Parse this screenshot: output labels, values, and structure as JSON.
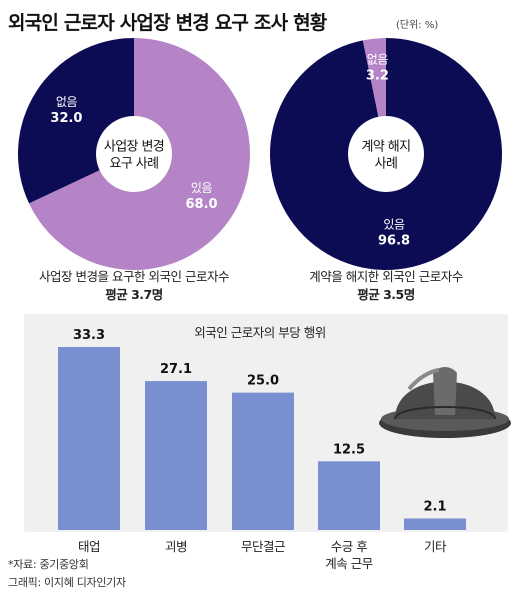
{
  "header": {
    "title": "외국인 근로자 사업장 변경 요구 조사 현황",
    "unit": "(단위: %)"
  },
  "chart_data": [
    {
      "type": "pie",
      "center_label_lines": [
        "사업장 변경",
        "요구 사례"
      ],
      "slices": [
        {
          "label": "있음",
          "value": 68.0,
          "color": "#b584c6"
        },
        {
          "label": "없음",
          "value": 32.0,
          "color": "#0c0c55"
        }
      ],
      "caption_lines": [
        "사업장 변경을 요구한 외국인 근로자수",
        "평균 3.7명"
      ]
    },
    {
      "type": "pie",
      "center_label_lines": [
        "계약 해지",
        "사례"
      ],
      "slices": [
        {
          "label": "있음",
          "value": 96.8,
          "color": "#0c0c55"
        },
        {
          "label": "없음",
          "value": 3.2,
          "color": "#b584c6"
        }
      ],
      "caption_lines": [
        "계약을 해지한 외국인 근로자수",
        "평균 3.5명"
      ]
    },
    {
      "type": "bar",
      "title": "외국인 근로자의 부당 행위",
      "categories": [
        [
          "태업"
        ],
        [
          "괴병"
        ],
        [
          "무단결근"
        ],
        [
          "수긍 후",
          "계속 근무"
        ],
        [
          "기타"
        ]
      ],
      "values": [
        33.3,
        27.1,
        25.0,
        12.5,
        2.1
      ],
      "value_labels": [
        "33.3",
        "27.1",
        "25.0",
        "12.5",
        "2.1"
      ],
      "color": "#7a8fd0",
      "ylim": [
        0,
        33.3
      ],
      "grid": false,
      "icon": "hard-hat-icon"
    }
  ],
  "footer": {
    "source": "*자료: 중기중앙회",
    "credit": "그래픽: 이지혜 디자인기자"
  }
}
